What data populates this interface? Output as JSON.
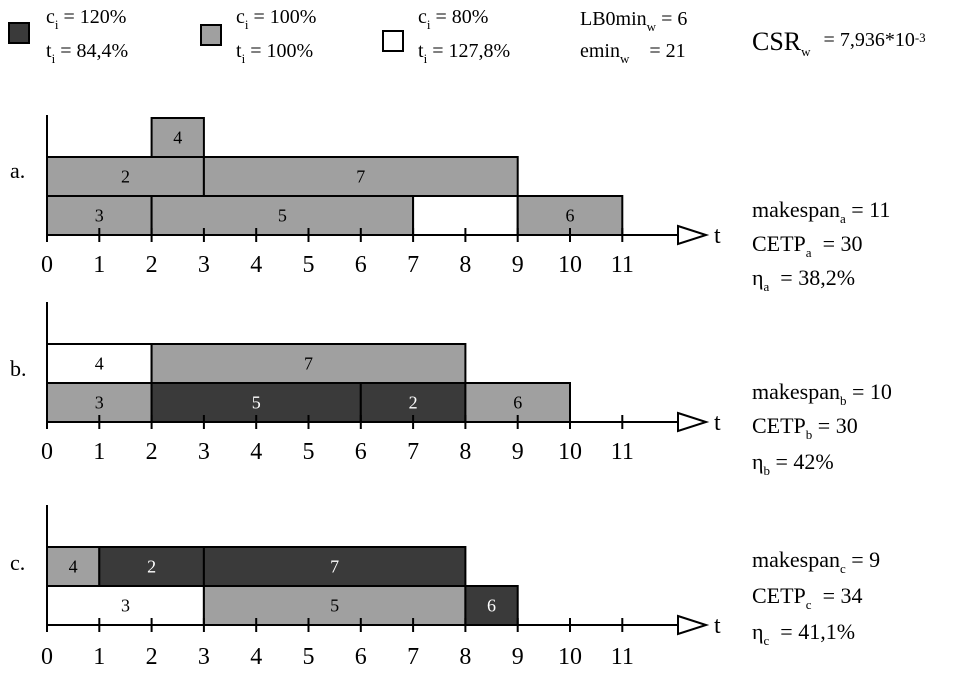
{
  "colors": {
    "dark": "#3a3a3a",
    "gray": "#a0a0a0",
    "white": "#ffffff"
  },
  "legend": [
    {
      "color_key": "dark",
      "c": "c",
      "c_sub": "i",
      "c_val": "= 120%",
      "t": "t",
      "t_sub": "i",
      "t_val": "= 84,4%"
    },
    {
      "color_key": "gray",
      "c": "c",
      "c_sub": "i",
      "c_val": "= 100%",
      "t": "t",
      "t_sub": "i",
      "t_val": "= 100%"
    },
    {
      "color_key": "white",
      "c": "c",
      "c_sub": "i",
      "c_val": "= 80%",
      "t": "t",
      "t_sub": "i",
      "t_val": "= 127,8%"
    }
  ],
  "bounds": {
    "lb_label": "LB0min",
    "lb_sub": "w",
    "lb_val": "= 6",
    "emin_label": "emin",
    "emin_sub": "w",
    "emin_val": "= 21"
  },
  "csr": {
    "label": "CSR",
    "sub": "w",
    "val": "= 7,936*10",
    "exp": "-3"
  },
  "axis_label": "t",
  "ticks": [
    "0",
    "1",
    "2",
    "3",
    "4",
    "5",
    "6",
    "7",
    "8",
    "9",
    "10",
    "11"
  ],
  "schedules": [
    {
      "label": "a.",
      "blocks": [
        {
          "row": 2,
          "start": 2,
          "end": 3,
          "color": "gray",
          "label": "4"
        },
        {
          "row": 1,
          "start": 0,
          "end": 3,
          "color": "gray",
          "label": "2"
        },
        {
          "row": 1,
          "start": 3,
          "end": 9,
          "color": "gray",
          "label": "7"
        },
        {
          "row": 0,
          "start": 0,
          "end": 2,
          "color": "gray",
          "label": "3"
        },
        {
          "row": 0,
          "start": 2,
          "end": 7,
          "color": "gray",
          "label": "5"
        },
        {
          "row": 0,
          "start": 7,
          "end": 9,
          "color": "white",
          "label": ""
        },
        {
          "row": 0,
          "start": 9,
          "end": 11,
          "color": "gray",
          "label": "6"
        }
      ],
      "metrics": [
        {
          "name": "makespan",
          "sub": "a",
          "val": "= 11"
        },
        {
          "name": "CETP",
          "sub": "a",
          "val": "= 30"
        },
        {
          "name": "η",
          "sub": "a",
          "val": "= 38,2%"
        }
      ]
    },
    {
      "label": "b.",
      "blocks": [
        {
          "row": 1,
          "start": 0,
          "end": 2,
          "color": "white",
          "label": "4"
        },
        {
          "row": 1,
          "start": 2,
          "end": 8,
          "color": "gray",
          "label": "7"
        },
        {
          "row": 0,
          "start": 0,
          "end": 2,
          "color": "gray",
          "label": "3"
        },
        {
          "row": 0,
          "start": 2,
          "end": 6,
          "color": "dark",
          "label": "5"
        },
        {
          "row": 0,
          "start": 6,
          "end": 8,
          "color": "dark",
          "label": "2"
        },
        {
          "row": 0,
          "start": 8,
          "end": 10,
          "color": "gray",
          "label": "6"
        }
      ],
      "metrics": [
        {
          "name": "makespan",
          "sub": "b",
          "val": "= 10"
        },
        {
          "name": "CETP",
          "sub": "b",
          "val": "= 30"
        },
        {
          "name": "η",
          "sub": "b",
          "val": "= 42%"
        }
      ]
    },
    {
      "label": "c.",
      "blocks": [
        {
          "row": 1,
          "start": 0,
          "end": 1,
          "color": "gray",
          "label": "4"
        },
        {
          "row": 1,
          "start": 1,
          "end": 3,
          "color": "dark",
          "label": "2"
        },
        {
          "row": 1,
          "start": 3,
          "end": 8,
          "color": "dark",
          "label": "7"
        },
        {
          "row": 0,
          "start": 0,
          "end": 3,
          "color": "white",
          "label": "3"
        },
        {
          "row": 0,
          "start": 3,
          "end": 8,
          "color": "gray",
          "label": "5"
        },
        {
          "row": 0,
          "start": 8,
          "end": 9,
          "color": "dark",
          "label": "6"
        }
      ],
      "metrics": [
        {
          "name": "makespan",
          "sub": "c",
          "val": "= 9"
        },
        {
          "name": "CETP",
          "sub": "c",
          "val": "= 34"
        },
        {
          "name": "η",
          "sub": "c",
          "val": "= 41,1%"
        }
      ]
    }
  ]
}
